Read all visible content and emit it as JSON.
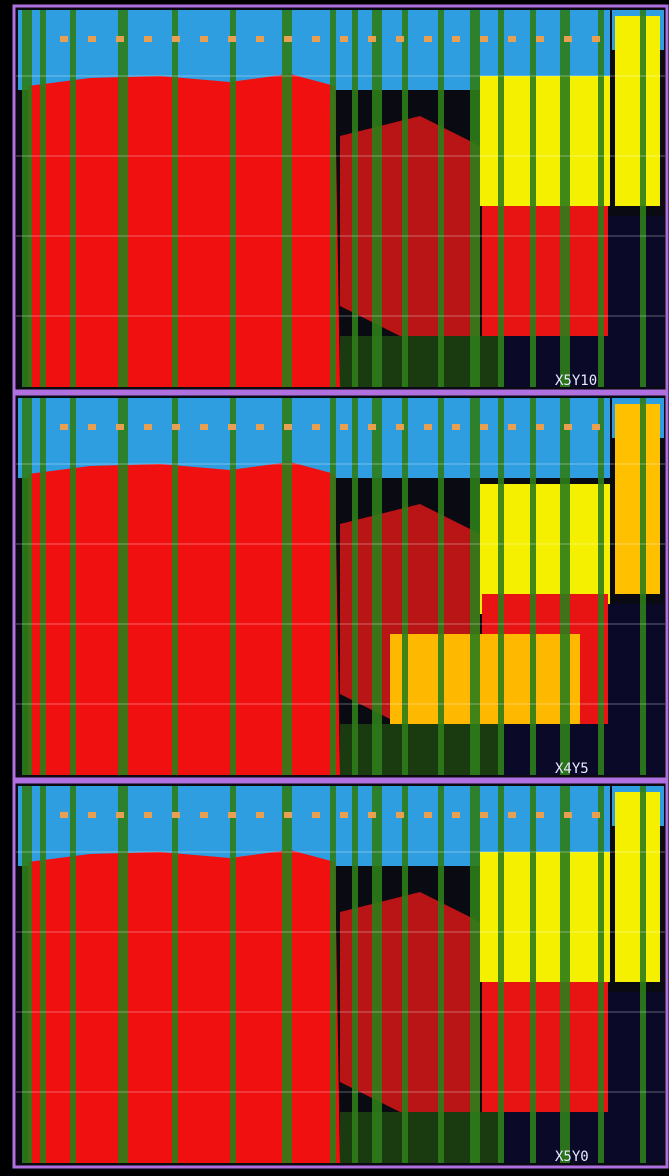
{
  "panels": [
    {
      "label": "X5Y10"
    },
    {
      "label": "X4Y5"
    },
    {
      "label": "X5Y0"
    }
  ]
}
